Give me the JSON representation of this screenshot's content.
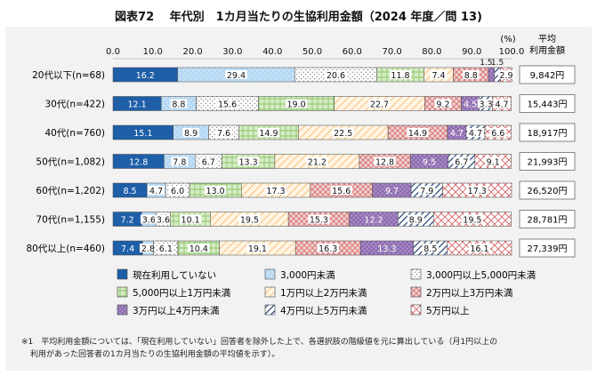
{
  "title": "図表72　 年代別　1カ月当たりの生協利用金額（2024 年度／問 13)",
  "note": {
    "line1": "※1　平均利用金額については、「現在利用していない」回答者を除外した上で、各選択肢の階級値を元に算出している（月1円以上の",
    "line2": "利用があった回答者の1カ月当たりの生協利用金額の平均値を示す）。"
  },
  "colors": {
    "not_using": "#1f5fa8",
    "lt3000": "#b7d9f4",
    "3000_5000": "#ffffff",
    "5000_10000": "#c9e6b4",
    "10000_20000": "#fde6c4",
    "20000_30000": "#f0c6c6",
    "30000_40000": "#b89ad0",
    "40000_50000": "#ffffff",
    "gte50000": "#ffffff"
  },
  "chart_data": {
    "type": "bar",
    "orientation": "horizontal-stacked-100",
    "unit_label": "(%)",
    "avg_header": [
      "平均",
      "利用金額"
    ],
    "xlim": [
      0,
      100
    ],
    "xticks": [
      "0.0",
      "10.0",
      "20.0",
      "30.0",
      "40.0",
      "50.0",
      "60.0",
      "70.0",
      "80.0",
      "90.0",
      "100.0"
    ],
    "categories": [
      "20代以下(n=68)",
      "30代(n=422)",
      "40代(n=760)",
      "50代(n=1,082)",
      "60代(n=1,202)",
      "70代(n=1,155)",
      "80代以上(n=460)"
    ],
    "series": [
      {
        "name": "現在利用していない",
        "key": "not_using",
        "values": [
          16.2,
          12.1,
          15.1,
          12.8,
          8.5,
          7.2,
          7.4
        ],
        "labels": [
          "16.2",
          "12.1",
          "15.1",
          "12.8",
          "8.5",
          "7.2",
          "7.4"
        ]
      },
      {
        "name": "3,000円未満",
        "key": "lt3000",
        "values": [
          29.4,
          8.8,
          8.9,
          7.8,
          4.7,
          3.6,
          2.8
        ],
        "labels": [
          "29.4",
          "8.8",
          "8.9",
          "7.8",
          "4.7",
          "3.6",
          "2.8"
        ]
      },
      {
        "name": "3,000円以上5,000円未満",
        "key": "3000_5000",
        "values": [
          20.6,
          15.6,
          7.6,
          6.7,
          6.0,
          3.6,
          6.1
        ],
        "labels": [
          "20.6",
          "15.6",
          "7.6",
          "6.7",
          "6.0",
          "3.6",
          "6.1"
        ]
      },
      {
        "name": "5,000円以上1万円未満",
        "key": "5000_10000",
        "values": [
          11.8,
          19.0,
          14.9,
          13.3,
          13.0,
          10.1,
          10.4
        ],
        "labels": [
          "11.8",
          "19.0",
          "14.9",
          "13.3",
          "13.0",
          "10.1",
          "10.4"
        ]
      },
      {
        "name": "1万円以上2万円未満",
        "key": "10000_20000",
        "values": [
          7.4,
          22.7,
          22.5,
          21.2,
          17.3,
          19.5,
          19.1
        ],
        "labels": [
          "7.4",
          "22.7",
          "22.5",
          "21.2",
          "17.3",
          "19.5",
          "19.1"
        ]
      },
      {
        "name": "2万円以上3万円未満",
        "key": "20000_30000",
        "values": [
          8.8,
          9.2,
          14.9,
          12.8,
          15.6,
          15.3,
          16.3
        ],
        "labels": [
          "8.8",
          "9.2",
          "14.9",
          "12.8",
          "15.6",
          "15.3",
          "16.3"
        ]
      },
      {
        "name": "3万円以上4万円未満",
        "key": "30000_40000",
        "values": [
          1.5,
          4.5,
          4.7,
          9.5,
          9.7,
          12.2,
          13.3
        ],
        "labels": [
          "1.5",
          "4.5",
          "4.7",
          "9.5",
          "9.7",
          "12.2",
          "13.3"
        ]
      },
      {
        "name": "4万円以上5万円未満",
        "key": "40000_50000",
        "values": [
          1.5,
          3.3,
          4.7,
          6.7,
          7.9,
          8.9,
          8.5
        ],
        "labels": [
          "1.5",
          "3.3",
          "4.7",
          "6.7",
          "7.9",
          "8.9",
          "8.5"
        ]
      },
      {
        "name": "5万円以上",
        "key": "gte50000",
        "values": [
          2.9,
          4.7,
          6.6,
          9.1,
          17.3,
          19.5,
          16.1
        ],
        "labels": [
          "2.9",
          "4.7",
          "6.6",
          "9.1",
          "17.3",
          "19.5",
          "16.1"
        ]
      }
    ],
    "averages": [
      "9,842円",
      "15,443円",
      "18,917円",
      "21,993円",
      "26,520円",
      "28,781円",
      "27,339円"
    ],
    "legend": {
      "position": "bottom",
      "columns": 3
    }
  }
}
